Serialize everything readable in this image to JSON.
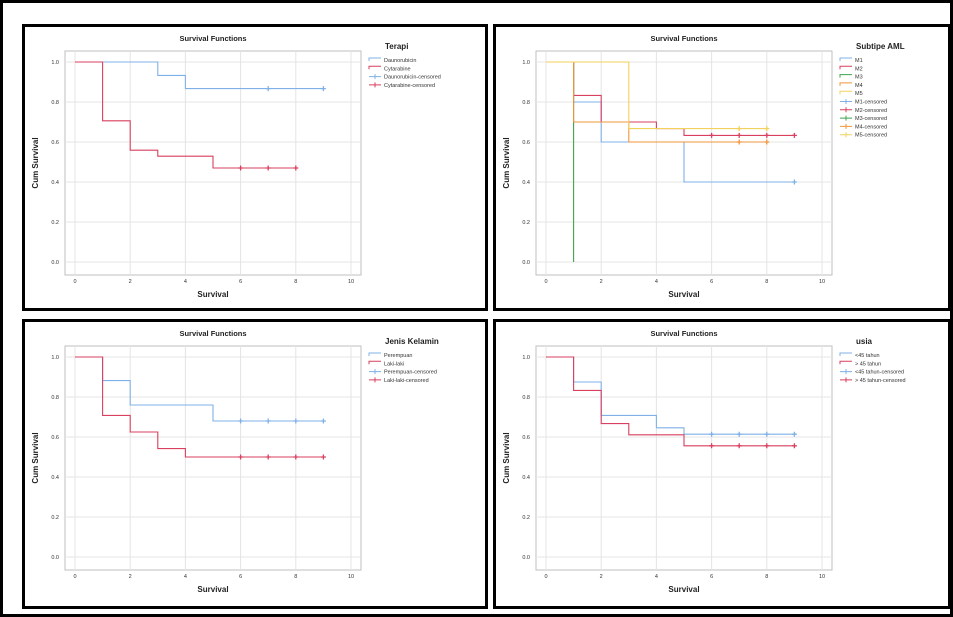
{
  "chart_data": [
    {
      "type": "line",
      "title": "Survival Functions",
      "xlabel": "Survival",
      "ylabel": "Cum Survival",
      "xlim": [
        0,
        10
      ],
      "ylim": [
        0,
        1.0
      ],
      "xticks": [
        "0",
        "2",
        "4",
        "6",
        "8",
        "10"
      ],
      "yticks": [
        "0.0",
        "0.2",
        "0.4",
        "0.6",
        "0.8",
        "1.0"
      ],
      "legend_title": "Terapi",
      "legend_position": "right",
      "legend": [
        {
          "label": "Daunorubicin",
          "color": "#7fb1e8",
          "kind": "line"
        },
        {
          "label": "Cytarabine",
          "color": "#d93f5f",
          "kind": "line"
        },
        {
          "label": "Daunorubicin-censored",
          "color": "#7fb1e8",
          "kind": "censor"
        },
        {
          "label": "Cytarabine-censored",
          "color": "#d93f5f",
          "kind": "censor"
        }
      ],
      "series": [
        {
          "name": "Daunorubicin",
          "color": "#7fb1e8",
          "steps": [
            [
              0,
              1.0
            ],
            [
              3,
              0.933
            ],
            [
              4,
              0.867
            ],
            [
              9,
              0.867
            ]
          ],
          "censored": [
            [
              7,
              0.867
            ],
            [
              9,
              0.867
            ]
          ]
        },
        {
          "name": "Cytarabine",
          "color": "#d93f5f",
          "steps": [
            [
              0,
              1.0
            ],
            [
              1,
              0.706
            ],
            [
              2,
              0.559
            ],
            [
              3,
              0.529
            ],
            [
              5,
              0.47
            ],
            [
              8,
              0.47
            ]
          ],
          "censored": [
            [
              6,
              0.47
            ],
            [
              7,
              0.47
            ],
            [
              8,
              0.47
            ]
          ]
        }
      ]
    },
    {
      "type": "line",
      "title": "Survival Functions",
      "xlabel": "Survival",
      "ylabel": "Cum Survival",
      "xlim": [
        0,
        10
      ],
      "ylim": [
        0,
        1.0
      ],
      "xticks": [
        "0",
        "2",
        "4",
        "6",
        "8",
        "10"
      ],
      "yticks": [
        "0.0",
        "0.2",
        "0.4",
        "0.6",
        "0.8",
        "1.0"
      ],
      "legend_title": "Subtipe AML",
      "legend_position": "right",
      "legend": [
        {
          "label": "M1",
          "color": "#7fb1e8",
          "kind": "line"
        },
        {
          "label": "M2",
          "color": "#d93f5f",
          "kind": "line"
        },
        {
          "label": "M3",
          "color": "#3fa34d",
          "kind": "line"
        },
        {
          "label": "M4",
          "color": "#f0953b",
          "kind": "line"
        },
        {
          "label": "M5",
          "color": "#f2d25c",
          "kind": "line"
        },
        {
          "label": "M1-censored",
          "color": "#7fb1e8",
          "kind": "censor"
        },
        {
          "label": "M2-censored",
          "color": "#d93f5f",
          "kind": "censor"
        },
        {
          "label": "M3-censored",
          "color": "#3fa34d",
          "kind": "censor"
        },
        {
          "label": "M4-censored",
          "color": "#f0953b",
          "kind": "censor"
        },
        {
          "label": "M5-censored",
          "color": "#f2d25c",
          "kind": "censor"
        }
      ],
      "series": [
        {
          "name": "M1",
          "color": "#7fb1e8",
          "steps": [
            [
              0,
              1.0
            ],
            [
              1,
              0.8
            ],
            [
              2,
              0.6
            ],
            [
              5,
              0.4
            ],
            [
              9,
              0.4
            ]
          ],
          "censored": [
            [
              9,
              0.4
            ]
          ]
        },
        {
          "name": "M2",
          "color": "#d93f5f",
          "steps": [
            [
              0,
              1.0
            ],
            [
              1,
              0.833
            ],
            [
              2,
              0.7
            ],
            [
              4,
              0.667
            ],
            [
              5,
              0.633
            ],
            [
              9,
              0.633
            ]
          ],
          "censored": [
            [
              6,
              0.633
            ],
            [
              7,
              0.633
            ],
            [
              8,
              0.633
            ],
            [
              9,
              0.633
            ]
          ]
        },
        {
          "name": "M3",
          "color": "#3fa34d",
          "steps": [
            [
              0,
              1.0
            ],
            [
              1,
              0.0
            ]
          ],
          "censored": []
        },
        {
          "name": "M4",
          "color": "#f0953b",
          "steps": [
            [
              0,
              1.0
            ],
            [
              1,
              0.7
            ],
            [
              3,
              0.6
            ],
            [
              8,
              0.6
            ]
          ],
          "censored": [
            [
              7,
              0.6
            ],
            [
              8,
              0.6
            ]
          ]
        },
        {
          "name": "M5",
          "color": "#f2d25c",
          "steps": [
            [
              0,
              1.0
            ],
            [
              3,
              0.667
            ],
            [
              8,
              0.667
            ]
          ],
          "censored": [
            [
              7,
              0.667
            ],
            [
              8,
              0.667
            ]
          ]
        }
      ]
    },
    {
      "type": "line",
      "title": "Survival Functions",
      "xlabel": "Survival",
      "ylabel": "Cum Survival",
      "xlim": [
        0,
        10
      ],
      "ylim": [
        0,
        1.0
      ],
      "xticks": [
        "0",
        "2",
        "4",
        "6",
        "8",
        "10"
      ],
      "yticks": [
        "0.0",
        "0.2",
        "0.4",
        "0.6",
        "0.8",
        "1.0"
      ],
      "legend_title": "Jenis Kelamin",
      "legend_position": "right",
      "legend": [
        {
          "label": "Perempuan",
          "color": "#7fb1e8",
          "kind": "line"
        },
        {
          "label": "Laki-laki",
          "color": "#d93f5f",
          "kind": "line"
        },
        {
          "label": "Perempuan-censored",
          "color": "#7fb1e8",
          "kind": "censor"
        },
        {
          "label": "Laki-laki-censored",
          "color": "#d93f5f",
          "kind": "censor"
        }
      ],
      "series": [
        {
          "name": "Perempuan",
          "color": "#7fb1e8",
          "steps": [
            [
              0,
              1.0
            ],
            [
              1,
              0.882
            ],
            [
              2,
              0.76
            ],
            [
              5,
              0.68
            ],
            [
              9,
              0.68
            ]
          ],
          "censored": [
            [
              6,
              0.68
            ],
            [
              7,
              0.68
            ],
            [
              8,
              0.68
            ],
            [
              9,
              0.68
            ]
          ]
        },
        {
          "name": "Laki-laki",
          "color": "#d93f5f",
          "steps": [
            [
              0,
              1.0
            ],
            [
              1,
              0.708
            ],
            [
              2,
              0.625
            ],
            [
              3,
              0.542
            ],
            [
              4,
              0.5
            ],
            [
              9,
              0.5
            ]
          ],
          "censored": [
            [
              6,
              0.5
            ],
            [
              7,
              0.5
            ],
            [
              8,
              0.5
            ],
            [
              9,
              0.5
            ]
          ]
        }
      ]
    },
    {
      "type": "line",
      "title": "Survival Functions",
      "xlabel": "Survival",
      "ylabel": "Cum Survival",
      "xlim": [
        0,
        10
      ],
      "ylim": [
        0,
        1.0
      ],
      "xticks": [
        "0",
        "2",
        "4",
        "6",
        "8",
        "10"
      ],
      "yticks": [
        "0.0",
        "0.2",
        "0.4",
        "0.6",
        "0.8",
        "1.0"
      ],
      "legend_title": "usia",
      "legend_position": "right",
      "legend": [
        {
          "label": "<45 tahun",
          "color": "#7fb1e8",
          "kind": "line"
        },
        {
          "label": ">  45 tahun",
          "color": "#d93f5f",
          "kind": "line"
        },
        {
          "label": "<45 tahun-censored",
          "color": "#7fb1e8",
          "kind": "censor"
        },
        {
          "label": ">  45 tahun-censored",
          "color": "#d93f5f",
          "kind": "censor"
        }
      ],
      "series": [
        {
          "name": "<45 tahun",
          "color": "#7fb1e8",
          "steps": [
            [
              0,
              1.0
            ],
            [
              1,
              0.875
            ],
            [
              2,
              0.708
            ],
            [
              4,
              0.646
            ],
            [
              5,
              0.614
            ],
            [
              9,
              0.614
            ]
          ],
          "censored": [
            [
              6,
              0.614
            ],
            [
              7,
              0.614
            ],
            [
              8,
              0.614
            ],
            [
              9,
              0.614
            ]
          ]
        },
        {
          "name": ">  45 tahun",
          "color": "#d93f5f",
          "steps": [
            [
              0,
              1.0
            ],
            [
              1,
              0.833
            ],
            [
              2,
              0.667
            ],
            [
              3,
              0.611
            ],
            [
              5,
              0.556
            ],
            [
              9,
              0.556
            ]
          ],
          "censored": [
            [
              6,
              0.556
            ],
            [
              7,
              0.556
            ],
            [
              8,
              0.556
            ],
            [
              9,
              0.556
            ]
          ]
        }
      ]
    }
  ]
}
